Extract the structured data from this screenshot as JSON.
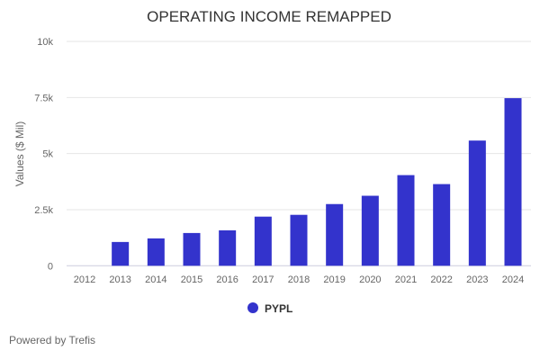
{
  "chart_data": {
    "type": "bar",
    "title": "OPERATING INCOME REMAPPED",
    "xlabel": "",
    "ylabel": "Values ($ Mil)",
    "ylim": [
      0,
      10000
    ],
    "yticks": [
      0,
      2500,
      5000,
      7500,
      10000
    ],
    "ytick_labels": [
      "0",
      "2.5k",
      "5k",
      "7.5k",
      "10k"
    ],
    "grid": true,
    "legend": "bottom-center",
    "categories": [
      "2012",
      "2013",
      "2014",
      "2015",
      "2016",
      "2017",
      "2018",
      "2019",
      "2020",
      "2021",
      "2022",
      "2023",
      "2024"
    ],
    "series": [
      {
        "name": "PYPL",
        "color": "#3333cc",
        "values": [
          null,
          1060,
          1220,
          1460,
          1580,
          2190,
          2270,
          2750,
          3120,
          4040,
          3640,
          5580,
          7470
        ]
      }
    ]
  },
  "footer": {
    "credit": "Powered by Trefis"
  }
}
